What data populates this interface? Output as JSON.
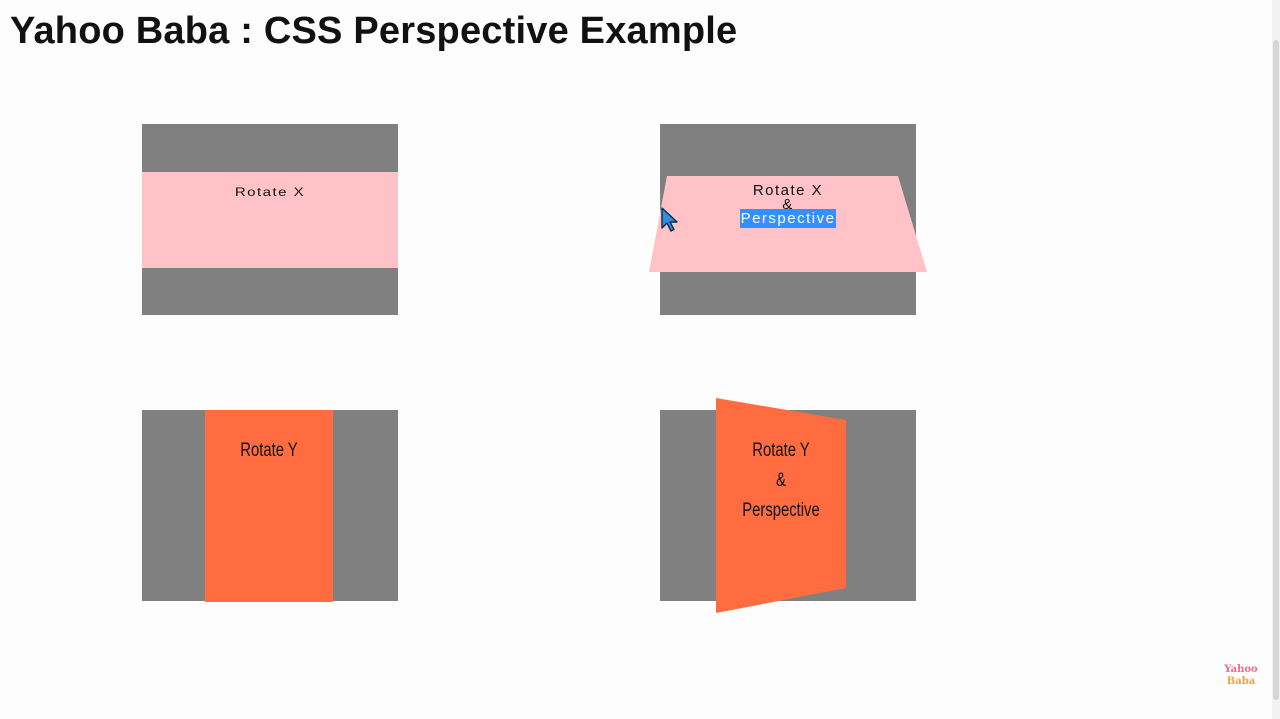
{
  "page": {
    "title": "Yahoo Baba : CSS Perspective Example"
  },
  "demos": {
    "rotate_x": {
      "label": "Rotate X"
    },
    "rotate_x_perspective": {
      "line1": "Rotate X",
      "line2": "&",
      "line3": "Perspective"
    },
    "rotate_y": {
      "label": "Rotate Y"
    },
    "rotate_y_perspective": {
      "line1": "Rotate Y",
      "line2": "&",
      "line3": "Perspective"
    }
  },
  "logo": {
    "line1": "Yahoo",
    "line2": "Baba"
  },
  "icons": [
    "mouse-cursor-icon"
  ],
  "colors": {
    "box_background": "#808080",
    "pink_card": "#ffc3c7",
    "orange_card": "#ff6c3f",
    "selection_highlight": "#3390ff"
  }
}
